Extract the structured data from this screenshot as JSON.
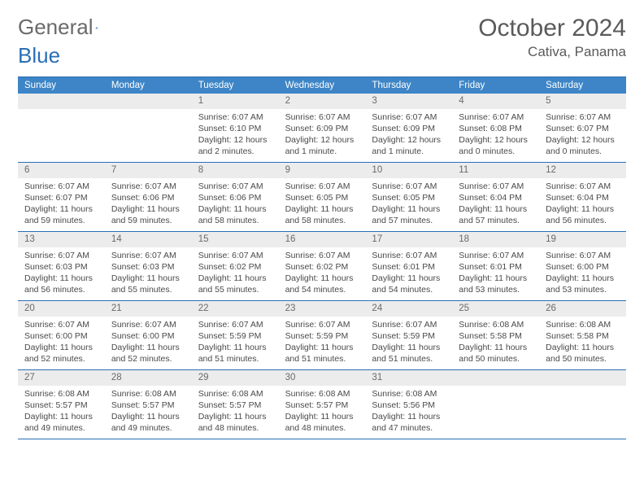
{
  "logo": {
    "text1": "General",
    "text2": "Blue"
  },
  "title": "October 2024",
  "location": "Cativa, Panama",
  "colors": {
    "header_bg": "#3d85c6",
    "border": "#2a6fb5",
    "num_bg": "#ececec",
    "text": "#4a4a4a",
    "title_text": "#5a5a5a"
  },
  "day_names": [
    "Sunday",
    "Monday",
    "Tuesday",
    "Wednesday",
    "Thursday",
    "Friday",
    "Saturday"
  ],
  "weeks": [
    [
      {
        "n": "",
        "empty": true
      },
      {
        "n": "",
        "empty": true
      },
      {
        "n": "1",
        "sr": "6:07 AM",
        "ss": "6:10 PM",
        "dh": "12",
        "dm": "2",
        "pl": "minutes"
      },
      {
        "n": "2",
        "sr": "6:07 AM",
        "ss": "6:09 PM",
        "dh": "12",
        "dm": "1",
        "pl": "minute"
      },
      {
        "n": "3",
        "sr": "6:07 AM",
        "ss": "6:09 PM",
        "dh": "12",
        "dm": "1",
        "pl": "minute"
      },
      {
        "n": "4",
        "sr": "6:07 AM",
        "ss": "6:08 PM",
        "dh": "12",
        "dm": "0",
        "pl": "minutes"
      },
      {
        "n": "5",
        "sr": "6:07 AM",
        "ss": "6:07 PM",
        "dh": "12",
        "dm": "0",
        "pl": "minutes"
      }
    ],
    [
      {
        "n": "6",
        "sr": "6:07 AM",
        "ss": "6:07 PM",
        "dh": "11",
        "dm": "59",
        "pl": "minutes"
      },
      {
        "n": "7",
        "sr": "6:07 AM",
        "ss": "6:06 PM",
        "dh": "11",
        "dm": "59",
        "pl": "minutes"
      },
      {
        "n": "8",
        "sr": "6:07 AM",
        "ss": "6:06 PM",
        "dh": "11",
        "dm": "58",
        "pl": "minutes"
      },
      {
        "n": "9",
        "sr": "6:07 AM",
        "ss": "6:05 PM",
        "dh": "11",
        "dm": "58",
        "pl": "minutes"
      },
      {
        "n": "10",
        "sr": "6:07 AM",
        "ss": "6:05 PM",
        "dh": "11",
        "dm": "57",
        "pl": "minutes"
      },
      {
        "n": "11",
        "sr": "6:07 AM",
        "ss": "6:04 PM",
        "dh": "11",
        "dm": "57",
        "pl": "minutes"
      },
      {
        "n": "12",
        "sr": "6:07 AM",
        "ss": "6:04 PM",
        "dh": "11",
        "dm": "56",
        "pl": "minutes"
      }
    ],
    [
      {
        "n": "13",
        "sr": "6:07 AM",
        "ss": "6:03 PM",
        "dh": "11",
        "dm": "56",
        "pl": "minutes"
      },
      {
        "n": "14",
        "sr": "6:07 AM",
        "ss": "6:03 PM",
        "dh": "11",
        "dm": "55",
        "pl": "minutes"
      },
      {
        "n": "15",
        "sr": "6:07 AM",
        "ss": "6:02 PM",
        "dh": "11",
        "dm": "55",
        "pl": "minutes"
      },
      {
        "n": "16",
        "sr": "6:07 AM",
        "ss": "6:02 PM",
        "dh": "11",
        "dm": "54",
        "pl": "minutes"
      },
      {
        "n": "17",
        "sr": "6:07 AM",
        "ss": "6:01 PM",
        "dh": "11",
        "dm": "54",
        "pl": "minutes"
      },
      {
        "n": "18",
        "sr": "6:07 AM",
        "ss": "6:01 PM",
        "dh": "11",
        "dm": "53",
        "pl": "minutes"
      },
      {
        "n": "19",
        "sr": "6:07 AM",
        "ss": "6:00 PM",
        "dh": "11",
        "dm": "53",
        "pl": "minutes"
      }
    ],
    [
      {
        "n": "20",
        "sr": "6:07 AM",
        "ss": "6:00 PM",
        "dh": "11",
        "dm": "52",
        "pl": "minutes"
      },
      {
        "n": "21",
        "sr": "6:07 AM",
        "ss": "6:00 PM",
        "dh": "11",
        "dm": "52",
        "pl": "minutes"
      },
      {
        "n": "22",
        "sr": "6:07 AM",
        "ss": "5:59 PM",
        "dh": "11",
        "dm": "51",
        "pl": "minutes"
      },
      {
        "n": "23",
        "sr": "6:07 AM",
        "ss": "5:59 PM",
        "dh": "11",
        "dm": "51",
        "pl": "minutes"
      },
      {
        "n": "24",
        "sr": "6:07 AM",
        "ss": "5:59 PM",
        "dh": "11",
        "dm": "51",
        "pl": "minutes"
      },
      {
        "n": "25",
        "sr": "6:08 AM",
        "ss": "5:58 PM",
        "dh": "11",
        "dm": "50",
        "pl": "minutes"
      },
      {
        "n": "26",
        "sr": "6:08 AM",
        "ss": "5:58 PM",
        "dh": "11",
        "dm": "50",
        "pl": "minutes"
      }
    ],
    [
      {
        "n": "27",
        "sr": "6:08 AM",
        "ss": "5:57 PM",
        "dh": "11",
        "dm": "49",
        "pl": "minutes"
      },
      {
        "n": "28",
        "sr": "6:08 AM",
        "ss": "5:57 PM",
        "dh": "11",
        "dm": "49",
        "pl": "minutes"
      },
      {
        "n": "29",
        "sr": "6:08 AM",
        "ss": "5:57 PM",
        "dh": "11",
        "dm": "48",
        "pl": "minutes"
      },
      {
        "n": "30",
        "sr": "6:08 AM",
        "ss": "5:57 PM",
        "dh": "11",
        "dm": "48",
        "pl": "minutes"
      },
      {
        "n": "31",
        "sr": "6:08 AM",
        "ss": "5:56 PM",
        "dh": "11",
        "dm": "47",
        "pl": "minutes"
      },
      {
        "n": "",
        "empty": true
      },
      {
        "n": "",
        "empty": true
      }
    ]
  ]
}
